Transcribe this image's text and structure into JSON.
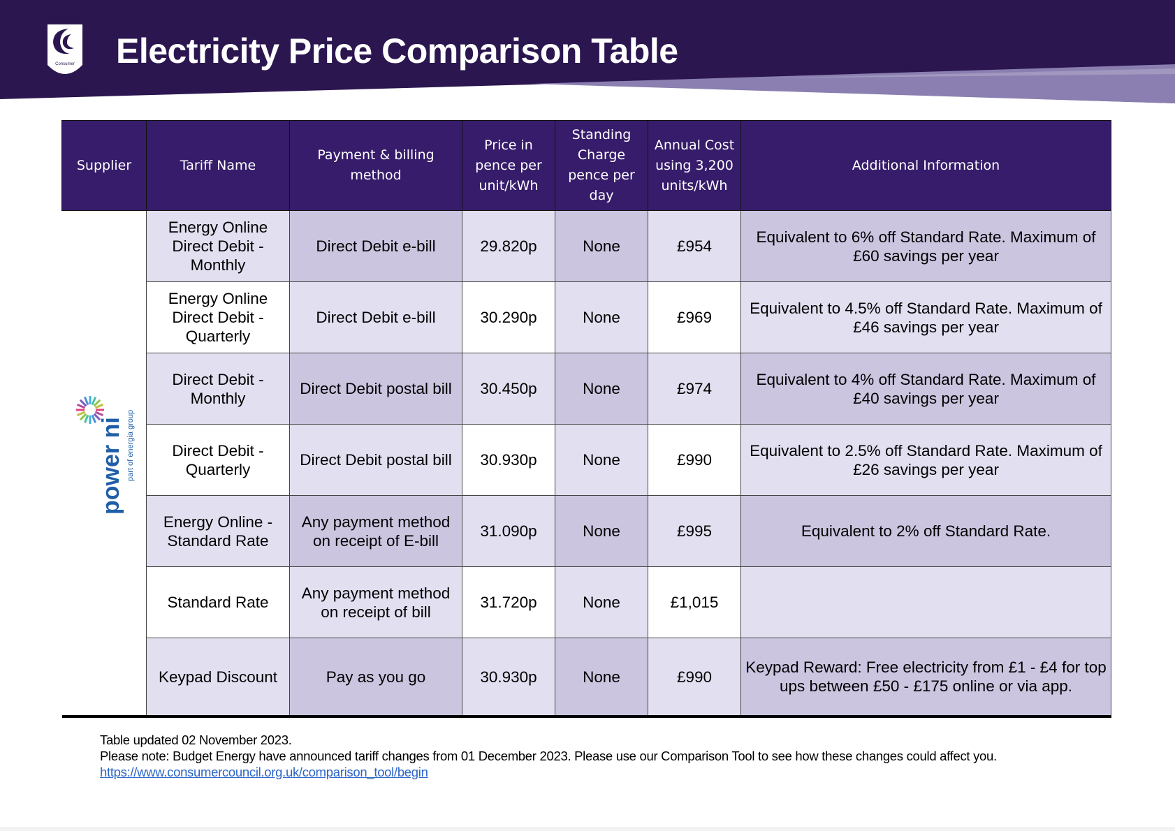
{
  "header": {
    "title": "Electricity Price Comparison Table",
    "logo_text": "The Consumer Council",
    "colors": {
      "banner": "#2b1650",
      "accent_band": "#8a7fb0"
    }
  },
  "table": {
    "columns": [
      "Supplier",
      "Tariff Name",
      "Payment & billing method",
      "Price in pence per unit/kWh",
      "Standing Charge pence per day",
      "Annual Cost using 3,200 units/kWh",
      "Additional Information"
    ],
    "supplier": {
      "name": "power ni",
      "logo_text": "power ni part of energia group"
    },
    "rows": [
      {
        "tariff": "Energy Online Direct Debit - Monthly",
        "payment": "Direct Debit e-bill",
        "price": "29.820p",
        "standing": "None",
        "annual": "£954",
        "info": "Equivalent to 6% off Standard Rate. Maximum of £60 savings per year"
      },
      {
        "tariff": "Energy Online Direct Debit - Quarterly",
        "payment": "Direct Debit e-bill",
        "price": "30.290p",
        "standing": "None",
        "annual": "£969",
        "info": "Equivalent to 4.5% off Standard Rate. Maximum of £46 savings per year"
      },
      {
        "tariff": "Direct Debit - Monthly",
        "payment": "Direct Debit postal bill",
        "price": "30.450p",
        "standing": "None",
        "annual": "£974",
        "info": "Equivalent to 4% off Standard Rate. Maximum of £40 savings per year"
      },
      {
        "tariff": "Direct Debit - Quarterly",
        "payment": "Direct Debit postal bill",
        "price": "30.930p",
        "standing": "None",
        "annual": "£990",
        "info": "Equivalent to 2.5% off Standard Rate. Maximum of £26 savings per year"
      },
      {
        "tariff": "Energy Online - Standard Rate",
        "payment": "Any payment method on receipt of E-bill",
        "price": "31.090p",
        "standing": "None",
        "annual": "£995",
        "info": "Equivalent to 2% off Standard Rate."
      },
      {
        "tariff": "Standard Rate",
        "payment": "Any payment method on receipt of bill",
        "price": "31.720p",
        "standing": "None",
        "annual": "£1,015",
        "info": ""
      },
      {
        "tariff": "Keypad Discount",
        "payment": "Pay as you go",
        "price": "30.930p",
        "standing": "None",
        "annual": "£990",
        "info": "Keypad Reward: Free electricity from £1 - £4 for top ups between £50 - £175 online or via app."
      }
    ]
  },
  "footer": {
    "updated": "Table updated 02 November 2023.",
    "note": "Please note: Budget Energy have announced tariff changes from 01 December 2023. Please use our Comparison Tool to see how these changes could affect you.",
    "link": "https://www.consumercouncil.org.uk/comparison_tool/begin"
  }
}
